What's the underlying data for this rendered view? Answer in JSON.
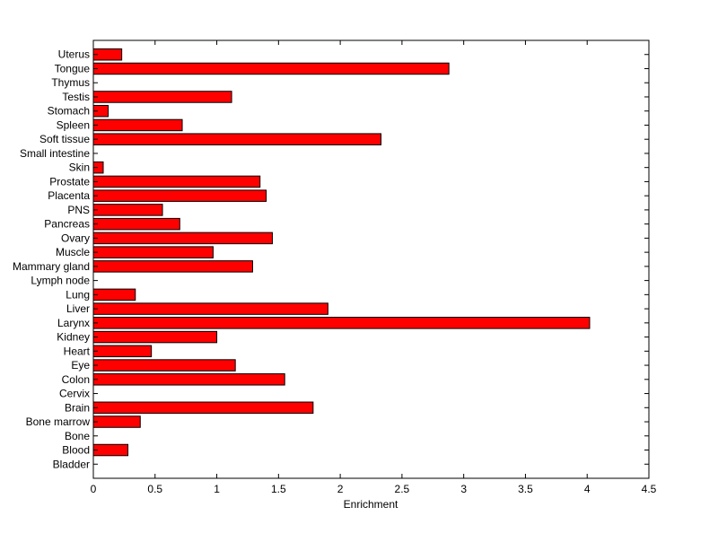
{
  "chart_data": {
    "type": "bar",
    "orientation": "horizontal",
    "title": "",
    "xlabel": "Enrichment",
    "ylabel": "",
    "xlim": [
      0,
      4.5
    ],
    "xticks": [
      "0",
      "0.5",
      "1",
      "1.5",
      "2",
      "2.5",
      "3",
      "3.5",
      "4",
      "4.5"
    ],
    "grid": false,
    "bar_color": "#ff0000",
    "categories": [
      "Bladder",
      "Blood",
      "Bone",
      "Bone marrow",
      "Brain",
      "Cervix",
      "Colon",
      "Eye",
      "Heart",
      "Kidney",
      "Larynx",
      "Liver",
      "Lung",
      "Lymph node",
      "Mammary gland",
      "Muscle",
      "Ovary",
      "Pancreas",
      "PNS",
      "Placenta",
      "Prostate",
      "Skin",
      "Small intestine",
      "Soft tissue",
      "Spleen",
      "Stomach",
      "Testis",
      "Thymus",
      "Tongue",
      "Uterus"
    ],
    "values": [
      0,
      0.28,
      0,
      0.38,
      1.78,
      0,
      1.55,
      1.15,
      0.47,
      1.0,
      4.02,
      1.9,
      0.34,
      0,
      1.29,
      0.97,
      1.45,
      0.7,
      0.56,
      1.4,
      1.35,
      0.08,
      0,
      2.33,
      0.72,
      0.12,
      1.12,
      0,
      2.88,
      0.23
    ]
  }
}
